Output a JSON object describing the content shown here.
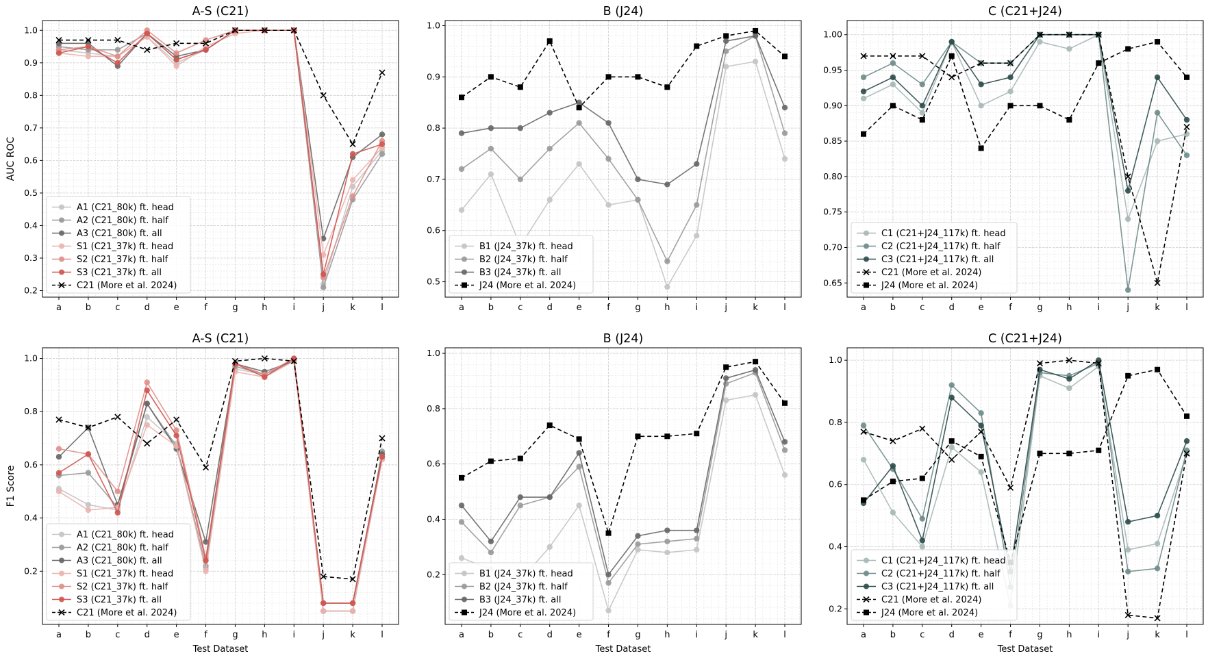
{
  "figure": {
    "shared_xlabel": "Test Dataset"
  },
  "chart_data": [
    {
      "type": "line",
      "title": "A-S (C21)",
      "xlabel": "",
      "ylabel": "AUC ROC",
      "categories": [
        "a",
        "b",
        "c",
        "d",
        "e",
        "f",
        "g",
        "h",
        "i",
        "j",
        "k",
        "l"
      ],
      "ylim": [
        0.18,
        1.03
      ],
      "yticks": [
        0.2,
        0.3,
        0.4,
        0.5,
        0.6,
        0.7,
        0.8,
        0.9,
        1.0
      ],
      "grid": true,
      "legend_position": "lower-left",
      "series": [
        {
          "name": "A1 (C21_80k) ft. head",
          "color": "#c4c4c4",
          "marker": "circle",
          "dash": false,
          "values": [
            0.94,
            0.93,
            0.92,
            0.98,
            0.9,
            0.94,
            1.0,
            1.0,
            1.0,
            0.22,
            0.52,
            0.63
          ]
        },
        {
          "name": "A2 (C21_80k) ft. half",
          "color": "#999999",
          "marker": "circle",
          "dash": false,
          "values": [
            0.95,
            0.94,
            0.94,
            0.99,
            0.91,
            0.94,
            1.0,
            1.0,
            1.0,
            0.21,
            0.48,
            0.62
          ]
        },
        {
          "name": "A3 (C21_80k) ft. all",
          "color": "#666666",
          "marker": "circle",
          "dash": false,
          "values": [
            0.96,
            0.96,
            0.89,
            0.99,
            0.92,
            0.94,
            1.0,
            1.0,
            1.0,
            0.36,
            0.61,
            0.68
          ]
        },
        {
          "name": "S1 (C21_37k) ft. head",
          "color": "#ebb2ae",
          "marker": "circle",
          "dash": false,
          "values": [
            0.93,
            0.92,
            0.92,
            0.98,
            0.89,
            0.95,
            0.99,
            1.0,
            1.0,
            0.31,
            0.54,
            0.64
          ]
        },
        {
          "name": "S2 (C21_37k) ft. half",
          "color": "#de8f8a",
          "marker": "circle",
          "dash": false,
          "values": [
            0.94,
            0.95,
            0.92,
            1.0,
            0.93,
            0.97,
            1.0,
            1.0,
            1.0,
            0.24,
            0.49,
            0.66
          ]
        },
        {
          "name": "S3 (C21_37k) ft. all",
          "color": "#cf5550",
          "marker": "circle",
          "dash": false,
          "values": [
            0.93,
            0.95,
            0.9,
            0.99,
            0.91,
            0.94,
            1.0,
            1.0,
            1.0,
            0.25,
            0.62,
            0.65
          ]
        },
        {
          "name": "C21 (More et al. 2024)",
          "color": "#000000",
          "marker": "x",
          "dash": true,
          "values": [
            0.97,
            0.97,
            0.97,
            0.94,
            0.96,
            0.96,
            1.0,
            1.0,
            1.0,
            0.8,
            0.65,
            0.87
          ]
        }
      ]
    },
    {
      "type": "line",
      "title": "B (J24)",
      "xlabel": "",
      "ylabel": "",
      "categories": [
        "a",
        "b",
        "c",
        "d",
        "e",
        "f",
        "g",
        "h",
        "i",
        "j",
        "k",
        "l"
      ],
      "ylim": [
        0.47,
        1.01
      ],
      "yticks": [
        0.5,
        0.6,
        0.7,
        0.8,
        0.9,
        1.0
      ],
      "grid": true,
      "legend_position": "lower-left",
      "series": [
        {
          "name": "B1 (J24_37k) ft. head",
          "color": "#c4c4c4",
          "marker": "circle",
          "dash": false,
          "values": [
            0.64,
            0.71,
            0.57,
            0.66,
            0.73,
            0.65,
            0.66,
            0.49,
            0.59,
            0.92,
            0.93,
            0.74
          ]
        },
        {
          "name": "B2 (J24_37k) ft. half",
          "color": "#999999",
          "marker": "circle",
          "dash": false,
          "values": [
            0.72,
            0.76,
            0.7,
            0.76,
            0.81,
            0.74,
            0.66,
            0.54,
            0.65,
            0.95,
            0.98,
            0.79
          ]
        },
        {
          "name": "B3 (J24_37k) ft. all",
          "color": "#666666",
          "marker": "circle",
          "dash": false,
          "values": [
            0.79,
            0.8,
            0.8,
            0.83,
            0.85,
            0.81,
            0.7,
            0.69,
            0.73,
            0.97,
            0.98,
            0.84
          ]
        },
        {
          "name": "J24 (More et al. 2024)",
          "color": "#000000",
          "marker": "square",
          "dash": true,
          "values": [
            0.86,
            0.9,
            0.88,
            0.97,
            0.84,
            0.9,
            0.9,
            0.88,
            0.96,
            0.98,
            0.99,
            0.94
          ]
        }
      ]
    },
    {
      "type": "line",
      "title": "C (C21+J24)",
      "xlabel": "",
      "ylabel": "",
      "categories": [
        "a",
        "b",
        "c",
        "d",
        "e",
        "f",
        "g",
        "h",
        "i",
        "j",
        "k",
        "l"
      ],
      "ylim": [
        0.63,
        1.02
      ],
      "yticks": [
        0.65,
        0.7,
        0.75,
        0.8,
        0.85,
        0.9,
        0.95,
        1.0
      ],
      "grid": true,
      "legend_position": "lower-left",
      "series": [
        {
          "name": "C1 (C21+J24_117k) ft. head",
          "color": "#a6b8b6",
          "marker": "circle",
          "dash": false,
          "values": [
            0.91,
            0.93,
            0.89,
            0.99,
            0.9,
            0.92,
            0.99,
            0.98,
            1.0,
            0.74,
            0.85,
            0.86
          ]
        },
        {
          "name": "C2 (C21+J24_117k) ft. half",
          "color": "#6e8c8a",
          "marker": "circle",
          "dash": false,
          "values": [
            0.94,
            0.96,
            0.93,
            0.99,
            0.96,
            0.96,
            1.0,
            1.0,
            1.0,
            0.64,
            0.89,
            0.83
          ]
        },
        {
          "name": "C3 (C21+J24_117k) ft. all",
          "color": "#2c4b4a",
          "marker": "circle",
          "dash": false,
          "values": [
            0.92,
            0.94,
            0.9,
            0.99,
            0.93,
            0.94,
            1.0,
            1.0,
            1.0,
            0.78,
            0.94,
            0.88
          ]
        },
        {
          "name": "C21 (More et al. 2024)",
          "color": "#000000",
          "marker": "x",
          "dash": true,
          "values": [
            0.97,
            0.97,
            0.97,
            0.94,
            0.96,
            0.96,
            1.0,
            1.0,
            1.0,
            0.8,
            0.65,
            0.87
          ]
        },
        {
          "name": "J24 (More et al. 2024)",
          "color": "#000000",
          "marker": "square",
          "dash": true,
          "values": [
            0.86,
            0.9,
            0.88,
            0.97,
            0.84,
            0.9,
            0.9,
            0.88,
            0.96,
            0.98,
            0.99,
            0.94
          ]
        }
      ]
    },
    {
      "type": "line",
      "title": "A-S (C21)",
      "xlabel": "Test Dataset",
      "ylabel": "F1 Score",
      "categories": [
        "a",
        "b",
        "c",
        "d",
        "e",
        "f",
        "g",
        "h",
        "i",
        "j",
        "k",
        "l"
      ],
      "ylim": [
        0.0,
        1.04
      ],
      "yticks": [
        0.2,
        0.4,
        0.6,
        0.8,
        1.0
      ],
      "grid": true,
      "legend_position": "lower-left",
      "series": [
        {
          "name": "A1 (C21_80k) ft. head",
          "color": "#c4c4c4",
          "marker": "circle",
          "dash": false,
          "values": [
            0.51,
            0.45,
            0.43,
            0.78,
            0.68,
            0.21,
            0.96,
            0.94,
            0.99,
            0.05,
            0.05,
            0.62
          ]
        },
        {
          "name": "A2 (C21_80k) ft. half",
          "color": "#999999",
          "marker": "circle",
          "dash": false,
          "values": [
            0.56,
            0.57,
            0.44,
            0.83,
            0.67,
            0.22,
            0.97,
            0.94,
            0.99,
            0.05,
            0.05,
            0.65
          ]
        },
        {
          "name": "A3 (C21_80k) ft. all",
          "color": "#666666",
          "marker": "circle",
          "dash": false,
          "values": [
            0.63,
            0.74,
            0.45,
            0.83,
            0.66,
            0.31,
            0.98,
            0.95,
            0.99,
            0.08,
            0.08,
            0.64
          ]
        },
        {
          "name": "S1 (C21_37k) ft. head",
          "color": "#ebb2ae",
          "marker": "circle",
          "dash": false,
          "values": [
            0.5,
            0.43,
            0.44,
            0.75,
            0.67,
            0.2,
            0.95,
            0.93,
            0.99,
            0.05,
            0.05,
            0.62
          ]
        },
        {
          "name": "S2 (C21_37k) ft. half",
          "color": "#de8f8a",
          "marker": "circle",
          "dash": false,
          "values": [
            0.66,
            0.64,
            0.5,
            0.91,
            0.73,
            0.25,
            0.98,
            0.94,
            1.0,
            0.08,
            0.08,
            0.63
          ]
        },
        {
          "name": "S3 (C21_37k) ft. all",
          "color": "#cf5550",
          "marker": "circle",
          "dash": false,
          "values": [
            0.57,
            0.64,
            0.42,
            0.88,
            0.71,
            0.24,
            0.98,
            0.93,
            1.0,
            0.08,
            0.08,
            0.63
          ]
        },
        {
          "name": "C21 (More et al. 2024)",
          "color": "#000000",
          "marker": "x",
          "dash": true,
          "values": [
            0.77,
            0.74,
            0.78,
            0.68,
            0.77,
            0.59,
            0.99,
            1.0,
            0.99,
            0.18,
            0.17,
            0.7
          ]
        }
      ]
    },
    {
      "type": "line",
      "title": "B (J24)",
      "xlabel": "Test Dataset",
      "ylabel": "",
      "categories": [
        "a",
        "b",
        "c",
        "d",
        "e",
        "f",
        "g",
        "h",
        "i",
        "j",
        "k",
        "l"
      ],
      "ylim": [
        0.02,
        1.02
      ],
      "yticks": [
        0.2,
        0.4,
        0.6,
        0.8,
        1.0
      ],
      "grid": true,
      "legend_position": "lower-left",
      "series": [
        {
          "name": "B1 (J24_37k) ft. head",
          "color": "#c4c4c4",
          "marker": "circle",
          "dash": false,
          "values": [
            0.26,
            0.22,
            0.18,
            0.3,
            0.45,
            0.07,
            0.29,
            0.28,
            0.29,
            0.83,
            0.85,
            0.56
          ]
        },
        {
          "name": "B2 (J24_37k) ft. half",
          "color": "#999999",
          "marker": "circle",
          "dash": false,
          "values": [
            0.39,
            0.28,
            0.45,
            0.48,
            0.59,
            0.17,
            0.31,
            0.32,
            0.33,
            0.89,
            0.93,
            0.65
          ]
        },
        {
          "name": "B3 (J24_37k) ft. all",
          "color": "#666666",
          "marker": "circle",
          "dash": false,
          "values": [
            0.45,
            0.32,
            0.48,
            0.48,
            0.64,
            0.2,
            0.34,
            0.36,
            0.36,
            0.91,
            0.94,
            0.68
          ]
        },
        {
          "name": "J24 (More et al. 2024)",
          "color": "#000000",
          "marker": "square",
          "dash": true,
          "values": [
            0.55,
            0.61,
            0.62,
            0.74,
            0.69,
            0.35,
            0.7,
            0.7,
            0.71,
            0.95,
            0.97,
            0.82
          ]
        }
      ]
    },
    {
      "type": "line",
      "title": "C (C21+J24)",
      "xlabel": "Test Dataset",
      "ylabel": "",
      "categories": [
        "a",
        "b",
        "c",
        "d",
        "e",
        "f",
        "g",
        "h",
        "i",
        "j",
        "k",
        "l"
      ],
      "ylim": [
        0.15,
        1.04
      ],
      "yticks": [
        0.2,
        0.4,
        0.6,
        0.8,
        1.0
      ],
      "grid": true,
      "legend_position": "lower-left",
      "series": [
        {
          "name": "C1 (C21+J24_117k) ft. head",
          "color": "#a6b8b6",
          "marker": "circle",
          "dash": false,
          "values": [
            0.68,
            0.51,
            0.4,
            0.72,
            0.64,
            0.21,
            0.95,
            0.91,
            0.98,
            0.39,
            0.41,
            0.7
          ]
        },
        {
          "name": "C2 (C21+J24_117k) ft. half",
          "color": "#6e8c8a",
          "marker": "circle",
          "dash": false,
          "values": [
            0.79,
            0.65,
            0.49,
            0.92,
            0.83,
            0.27,
            0.96,
            0.95,
            0.99,
            0.32,
            0.33,
            0.71
          ]
        },
        {
          "name": "C3 (C21+J24_117k) ft. all",
          "color": "#2c4b4a",
          "marker": "circle",
          "dash": false,
          "values": [
            0.54,
            0.66,
            0.42,
            0.88,
            0.79,
            0.32,
            0.97,
            0.94,
            1.0,
            0.48,
            0.5,
            0.74
          ]
        },
        {
          "name": "C21 (More et al. 2024)",
          "color": "#000000",
          "marker": "x",
          "dash": true,
          "values": [
            0.77,
            0.74,
            0.78,
            0.68,
            0.77,
            0.59,
            0.99,
            1.0,
            0.99,
            0.18,
            0.17,
            0.7
          ]
        },
        {
          "name": "J24 (More et al. 2024)",
          "color": "#000000",
          "marker": "square",
          "dash": true,
          "values": [
            0.55,
            0.61,
            0.62,
            0.74,
            0.69,
            0.35,
            0.7,
            0.7,
            0.71,
            0.95,
            0.97,
            0.82
          ]
        }
      ]
    }
  ]
}
